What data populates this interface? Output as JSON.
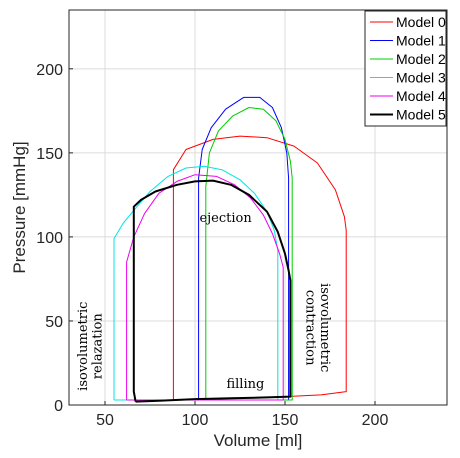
{
  "chart_data": {
    "type": "line",
    "title": "",
    "xlabel": "Volume [ml]",
    "ylabel": "Pressure [mmHg]",
    "xlim": [
      30,
      240
    ],
    "ylim": [
      0,
      235
    ],
    "xticks": [
      50,
      100,
      150,
      200
    ],
    "yticks": [
      0,
      50,
      100,
      150,
      200
    ],
    "grid": true,
    "legend_position": "top-right",
    "series": [
      {
        "name": "Model 0",
        "color": "#ff0000",
        "width": 1,
        "points": [
          [
            88,
            3
          ],
          [
            88,
            140
          ],
          [
            95,
            152
          ],
          [
            110,
            158
          ],
          [
            125,
            160
          ],
          [
            140,
            159
          ],
          [
            155,
            154
          ],
          [
            168,
            144
          ],
          [
            178,
            128
          ],
          [
            183,
            112
          ],
          [
            184,
            104
          ],
          [
            184,
            8
          ],
          [
            170,
            6
          ],
          [
            150,
            5
          ],
          [
            120,
            4
          ],
          [
            100,
            3.5
          ],
          [
            88,
            3
          ]
        ]
      },
      {
        "name": "Model 1",
        "color": "#0000ff",
        "width": 1,
        "points": [
          [
            102,
            3
          ],
          [
            102,
            135
          ],
          [
            104,
            152
          ],
          [
            109,
            165
          ],
          [
            117,
            176
          ],
          [
            127,
            183
          ],
          [
            136,
            183
          ],
          [
            143,
            177
          ],
          [
            148,
            165
          ],
          [
            151,
            150
          ],
          [
            152,
            135
          ],
          [
            152,
            3
          ],
          [
            130,
            3
          ],
          [
            102,
            3
          ]
        ]
      },
      {
        "name": "Model 2",
        "color": "#00cc00",
        "width": 1,
        "points": [
          [
            106,
            3
          ],
          [
            106,
            130
          ],
          [
            108,
            150
          ],
          [
            113,
            163
          ],
          [
            121,
            172
          ],
          [
            130,
            177
          ],
          [
            138,
            176
          ],
          [
            145,
            169
          ],
          [
            150,
            158
          ],
          [
            153,
            145
          ],
          [
            154,
            135
          ],
          [
            154,
            3
          ],
          [
            130,
            3
          ],
          [
            106,
            3
          ]
        ]
      },
      {
        "name": "Model 3",
        "color": "#00e5e5",
        "width": 1,
        "points": [
          [
            55,
            3
          ],
          [
            55,
            99
          ],
          [
            60,
            108
          ],
          [
            67,
            117
          ],
          [
            75,
            127
          ],
          [
            85,
            136
          ],
          [
            95,
            141
          ],
          [
            105,
            142
          ],
          [
            115,
            140
          ],
          [
            125,
            134
          ],
          [
            133,
            126
          ],
          [
            140,
            115
          ],
          [
            144,
            104
          ],
          [
            146,
            92
          ],
          [
            146,
            3
          ],
          [
            120,
            3
          ],
          [
            90,
            3
          ],
          [
            55,
            3
          ]
        ]
      },
      {
        "name": "Model 4",
        "color": "#ee00ee",
        "width": 1,
        "points": [
          [
            62,
            3
          ],
          [
            62,
            85
          ],
          [
            66,
            100
          ],
          [
            72,
            114
          ],
          [
            80,
            126
          ],
          [
            90,
            133
          ],
          [
            100,
            137
          ],
          [
            112,
            136
          ],
          [
            122,
            131
          ],
          [
            131,
            123
          ],
          [
            138,
            113
          ],
          [
            143,
            102
          ],
          [
            147,
            90
          ],
          [
            149,
            82
          ],
          [
            149,
            3
          ],
          [
            120,
            3
          ],
          [
            90,
            3
          ],
          [
            62,
            3
          ]
        ]
      },
      {
        "name": "Model 5",
        "color": "#000000",
        "width": 2,
        "points": [
          [
            67,
            2
          ],
          [
            66,
            8
          ],
          [
            66,
            118
          ],
          [
            70,
            122
          ],
          [
            78,
            127
          ],
          [
            90,
            131
          ],
          [
            100,
            133
          ],
          [
            110,
            133.5
          ],
          [
            120,
            131
          ],
          [
            130,
            125
          ],
          [
            140,
            115
          ],
          [
            146,
            103
          ],
          [
            150,
            90
          ],
          [
            152,
            80
          ],
          [
            153,
            74
          ],
          [
            153,
            5
          ],
          [
            140,
            4.5
          ],
          [
            120,
            4
          ],
          [
            100,
            3.5
          ],
          [
            80,
            2.5
          ],
          [
            67,
            2
          ]
        ]
      }
    ],
    "annotations": [
      {
        "text": "ejection",
        "x": 117,
        "y": 109,
        "rotation": 0
      },
      {
        "text": "filling",
        "x": 128,
        "y": 10,
        "rotation": 0
      },
      {
        "text": "isovolumetric",
        "x": 40,
        "y": 35,
        "rotation": -90
      },
      {
        "text": "relazation",
        "x": 48,
        "y": 35,
        "rotation": -90
      },
      {
        "text": "isovolumetric",
        "x": 170,
        "y": 46,
        "rotation": 90
      },
      {
        "text": "contraction",
        "x": 162,
        "y": 46,
        "rotation": 90
      }
    ]
  }
}
